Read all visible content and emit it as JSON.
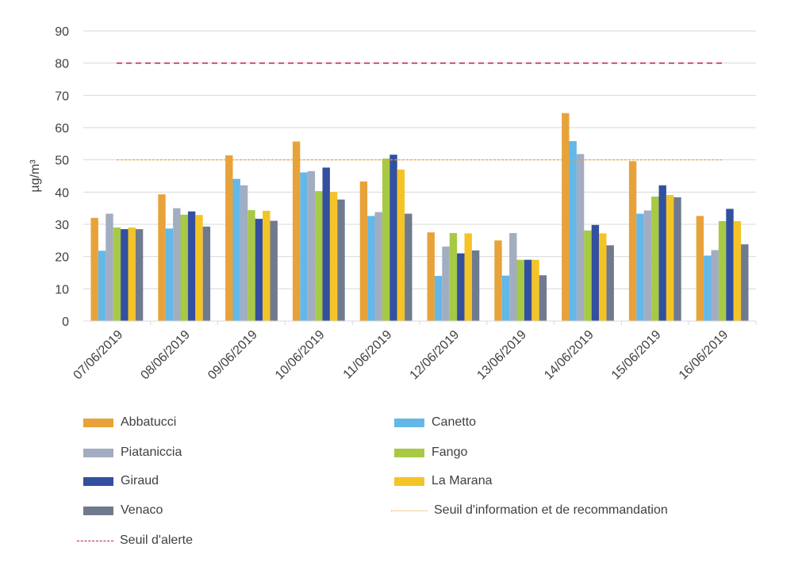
{
  "chart_data": {
    "type": "bar",
    "ylabel": "µg/m³",
    "ylim": [
      0,
      90
    ],
    "yticks": [
      "0",
      "10",
      "20",
      "30",
      "40",
      "50",
      "60",
      "70",
      "80",
      "90"
    ],
    "grid": true,
    "legend_position": "bottom",
    "categories": [
      "07/06/2019",
      "08/06/2019",
      "09/06/2019",
      "10/06/2019",
      "11/06/2019",
      "12/06/2019",
      "13/06/2019",
      "14/06/2019",
      "15/06/2019",
      "16/06/2019"
    ],
    "series": [
      {
        "name": "Abbatucci",
        "color": "#E8A23A",
        "values": [
          32,
          39.3,
          51.4,
          55.7,
          43.3,
          27.5,
          25,
          64.5,
          49.6,
          32.6
        ]
      },
      {
        "name": "Canetto",
        "color": "#63B8E8",
        "values": [
          21.8,
          28.7,
          44.1,
          46.1,
          32.6,
          14,
          14.1,
          55.8,
          33.3,
          20.3
        ]
      },
      {
        "name": "Piataniccia",
        "color": "#A2ADC2",
        "values": [
          33.3,
          35,
          42.1,
          46.5,
          33.8,
          23.1,
          27.3,
          51.8,
          34.3,
          22
        ]
      },
      {
        "name": "Fango",
        "color": "#A7C944",
        "values": [
          29,
          33,
          34.4,
          40.3,
          50.4,
          27.3,
          19,
          28.1,
          38.6,
          31
        ]
      },
      {
        "name": "Giraud",
        "color": "#3350A0",
        "values": [
          28.5,
          34,
          31.7,
          47.6,
          51.6,
          21,
          19,
          29.8,
          42.1,
          34.8
        ]
      },
      {
        "name": "La Marana",
        "color": "#F4C427",
        "values": [
          29,
          32.9,
          34.2,
          40,
          47,
          27.2,
          19,
          27.2,
          39.1,
          31
        ]
      },
      {
        "name": "Venaco",
        "color": "#707A8E",
        "values": [
          28.5,
          29.3,
          31.1,
          37.7,
          33.3,
          21.9,
          14.2,
          23.5,
          38.4,
          23.8
        ]
      }
    ],
    "lines": [
      {
        "name": "Seuil d'information et de recommandation",
        "value": 50,
        "color": "#E8A23A"
      },
      {
        "name": "Seuil d'alerte",
        "value": 80,
        "color": "#C0183F"
      }
    ]
  }
}
